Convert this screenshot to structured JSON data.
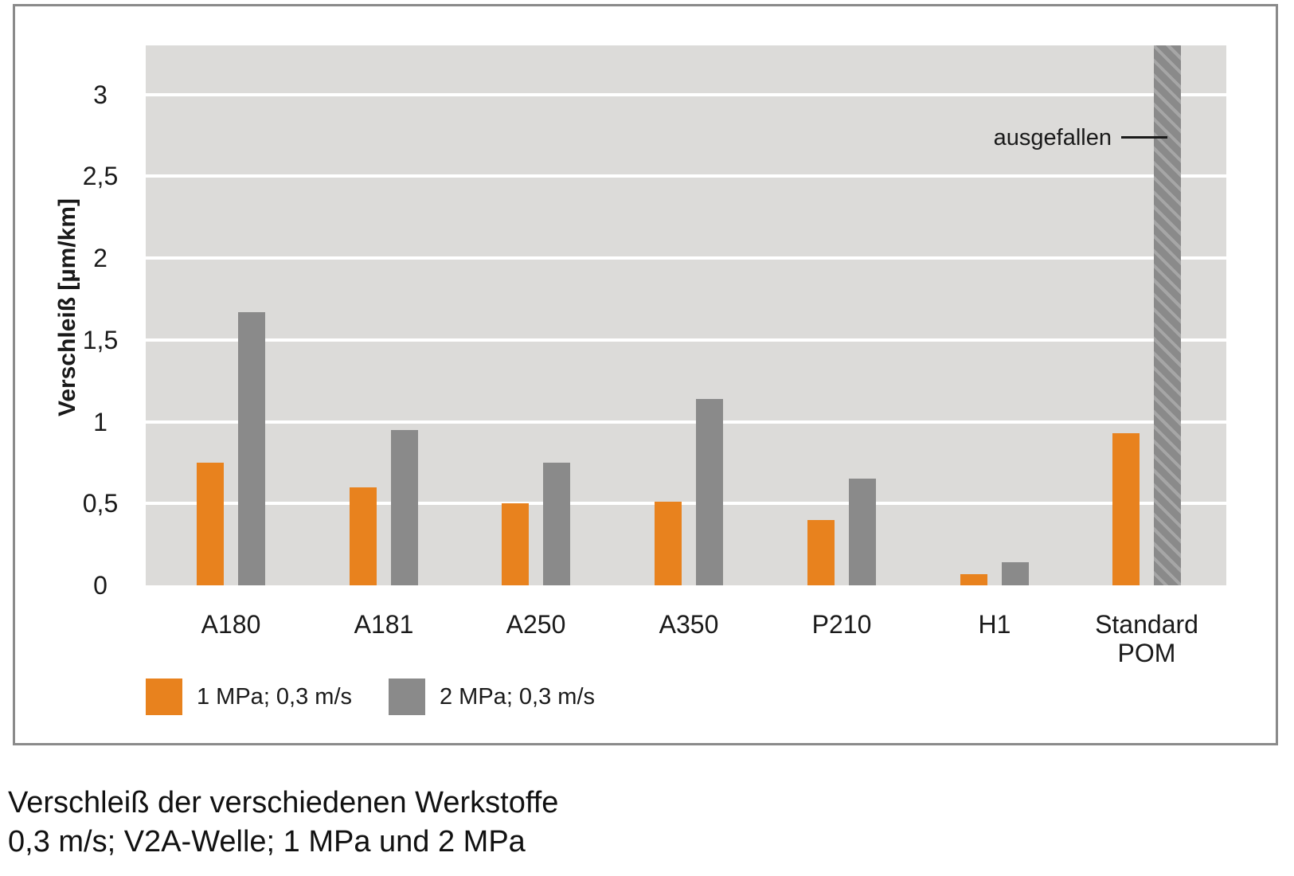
{
  "chart_data": {
    "type": "bar",
    "title": "",
    "xlabel": "",
    "ylabel": "Verschleiß [µm/km]",
    "ylim": [
      0,
      3.3
    ],
    "yticks": [
      {
        "value": 0,
        "label": "0"
      },
      {
        "value": 0.5,
        "label": "0,5"
      },
      {
        "value": 1,
        "label": "1"
      },
      {
        "value": 1.5,
        "label": "1,5"
      },
      {
        "value": 2,
        "label": "2"
      },
      {
        "value": 2.5,
        "label": "2,5"
      },
      {
        "value": 3,
        "label": "3"
      }
    ],
    "grid": "horizontal white gridlines on light-gray plot background",
    "plot_background": "#dcdbd9",
    "legend_position": "bottom-left",
    "categories": [
      "A180",
      "A181",
      "A250",
      "A350",
      "P210",
      "H1",
      "Standard POM"
    ],
    "series": [
      {
        "name": "1 MPa; 0,3 m/s",
        "color": "#e8821e",
        "values": [
          0.75,
          0.6,
          0.5,
          0.51,
          0.4,
          0.07,
          0.93
        ]
      },
      {
        "name": "2 MPa; 0,3 m/s",
        "color": "#8a8a8a",
        "values": [
          1.67,
          0.95,
          0.75,
          1.14,
          0.65,
          0.14,
          null
        ]
      }
    ],
    "failed_bar": {
      "series_index": 1,
      "category": "Standard POM",
      "label": "ausgefallen",
      "style": "hatched bar clipped at top of plot (value off-scale)"
    }
  },
  "caption": {
    "line1": "Verschleiß der verschiedenen Werkstoffe",
    "line2": "0,3 m/s; V2A-Welle; 1 MPa und 2 MPa"
  }
}
